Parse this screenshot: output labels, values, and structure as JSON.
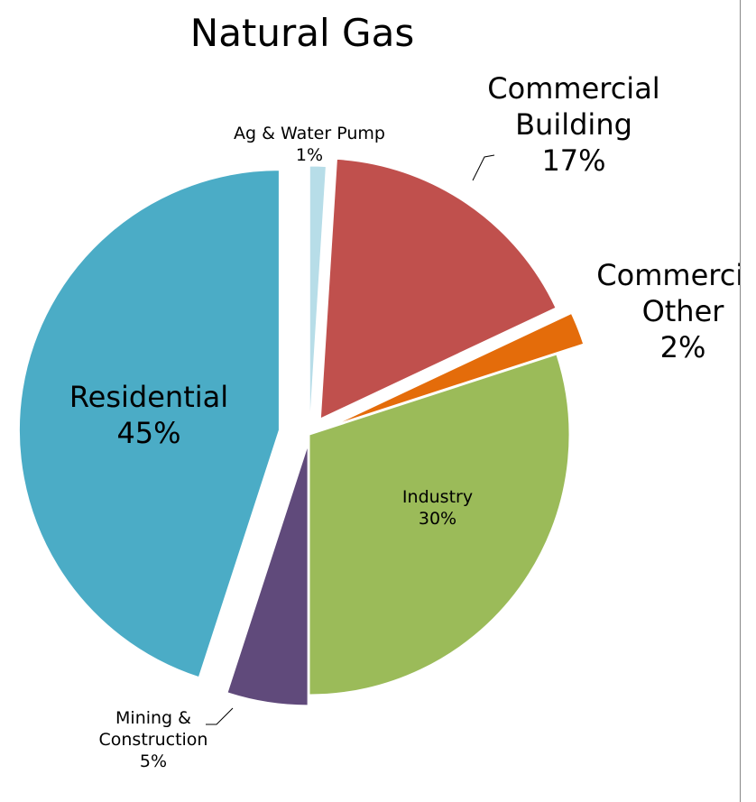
{
  "chart_data": {
    "type": "pie",
    "title": "Natural Gas",
    "categories": [
      "Ag & Water Pump",
      "Commercial Building",
      "Commercial Other",
      "Industry",
      "Mining & Construction",
      "Residential"
    ],
    "values": [
      1,
      17,
      2,
      30,
      5,
      45
    ],
    "value_labels": [
      "1%",
      "17%",
      "2%",
      "30%",
      "5%",
      "45%"
    ],
    "colors": [
      "#b7dde8",
      "#c0504d",
      "#e46c0a",
      "#9bbb59",
      "#604a7b",
      "#4bacc6"
    ]
  }
}
